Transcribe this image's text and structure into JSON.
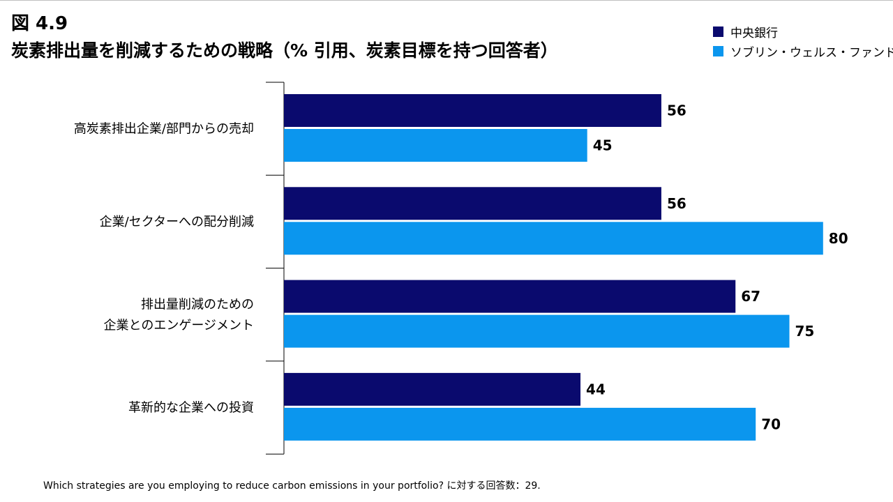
{
  "figure_label": "図 4.9",
  "title": "炭素排出量を削減するための戦略（% 引用、炭素目標を持つ回答者）",
  "footnote": "Which strategies are you employing to reduce carbon emissions in your portfolio? に対する回答数：29.",
  "colors": {
    "central_banks": "#0a0a6e",
    "sovereign_wealth_funds": "#0b96ee",
    "axis": "#000000"
  },
  "legend": [
    {
      "name": "中央銀行",
      "color": "#0a0a6e"
    },
    {
      "name": "ソブリン・ウェルス・ファンド",
      "color": "#0b96ee"
    }
  ],
  "chart_data": {
    "type": "bar",
    "orientation": "horizontal",
    "title": "炭素排出量を削減するための戦略（% 引用、炭素目標を持つ回答者）",
    "categories": [
      [
        "高炭素排出企業/部門からの売却"
      ],
      [
        "企業/セクターへの配分削減"
      ],
      [
        "排出量削減のための",
        "企業とのエンゲージメント"
      ],
      [
        "革新的な企業への投資"
      ]
    ],
    "series": [
      {
        "name": "中央銀行",
        "values": [
          56,
          56,
          67,
          44
        ]
      },
      {
        "name": "ソブリン・ウェルス・ファンド",
        "values": [
          45,
          80,
          75,
          70
        ]
      }
    ],
    "xlim": [
      0,
      80
    ],
    "grid": false,
    "legend_position": "top-right",
    "data_labels": true
  }
}
